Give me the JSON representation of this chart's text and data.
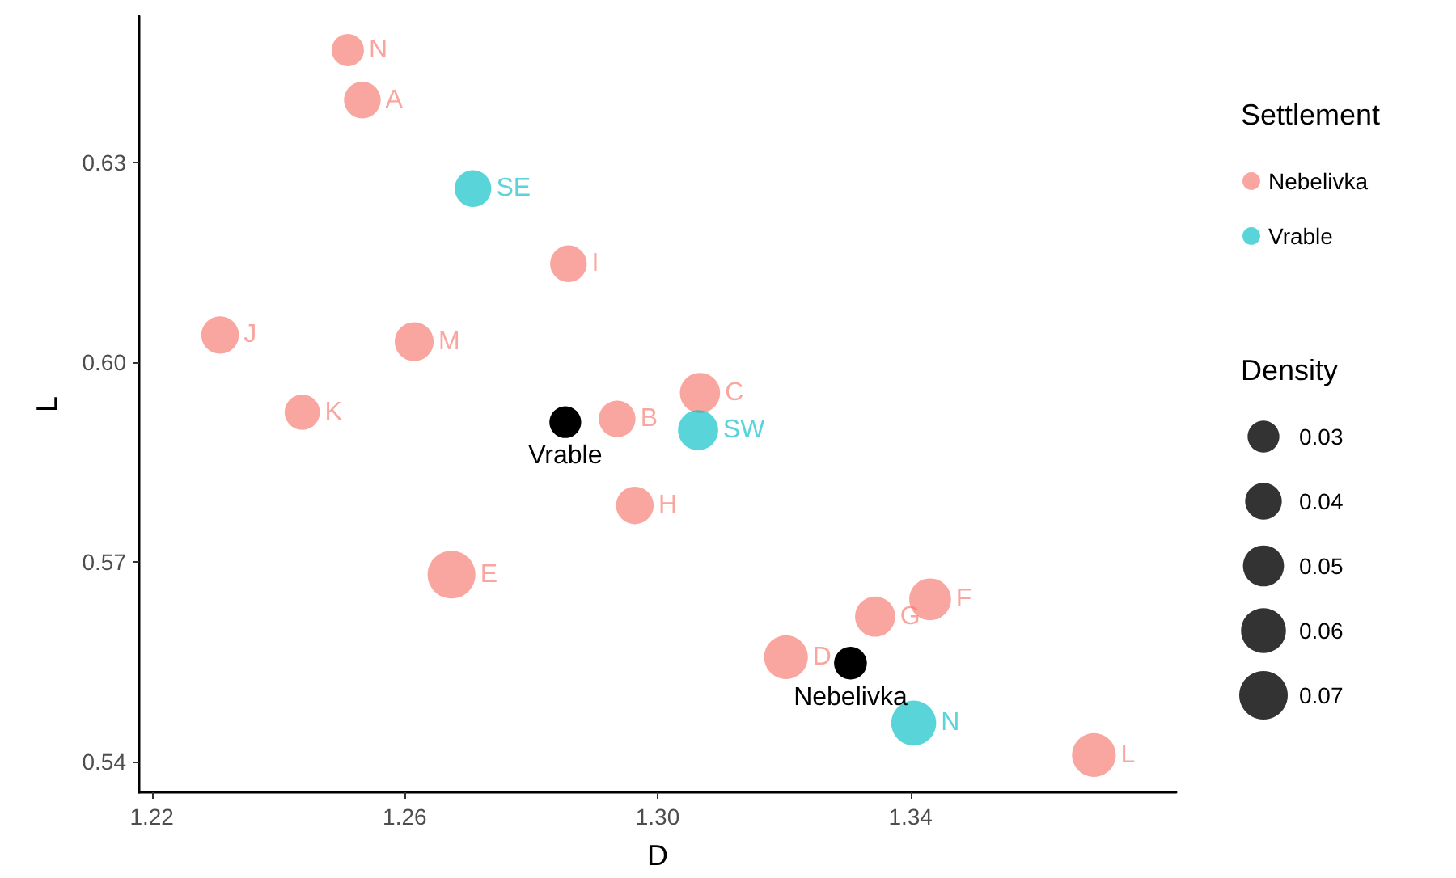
{
  "chart_data": {
    "type": "bubble",
    "xlabel": "D",
    "ylabel": "L",
    "legend_title": "Settlement",
    "legend": "right",
    "annotations": [
      "Density"
    ],
    "xlim": [
      1.218,
      1.382
    ],
    "xticks": [
      1.22,
      1.26,
      {
        "value": 1.3,
        "label": "1.30"
      },
      1.34
    ],
    "ylim": [
      0.5354,
      0.652
    ],
    "yticks": [
      0.54,
      0.57,
      {
        "value": 0.6,
        "label": "0.60"
      },
      0.63
    ],
    "grid": false,
    "marker": "circle",
    "size_legend": [
      0.03,
      0.04,
      0.05,
      0.06,
      0.07
    ],
    "series": [
      {
        "name": "Nebelivka",
        "color": "#f8766d",
        "x": [
          1.251,
          1.2533,
          1.2859,
          1.2308,
          1.2615,
          1.3067,
          1.2438,
          1.2936,
          1.2964,
          1.2674,
          1.3203,
          1.3344,
          1.3431,
          1.369
        ],
        "values": [
          0.6469,
          0.6394,
          0.6148,
          0.6041,
          0.6031,
          0.5954,
          0.5925,
          0.5915,
          0.5785,
          0.5681,
          0.5557,
          0.5618,
          0.5644,
          0.541
        ],
        "sizes": [
          0.031,
          0.04,
          0.04,
          0.042,
          0.045,
          0.048,
          0.037,
          0.04,
          0.042,
          0.068,
          0.057,
          0.048,
          0.052,
          0.057
        ],
        "value_labels": [
          "N",
          "A",
          "I",
          "J",
          "M",
          "C",
          "K",
          "B",
          "H",
          "E",
          "D",
          "G",
          "F",
          "L"
        ]
      },
      {
        "name": "Vrable",
        "color": "#00bfc4",
        "x": [
          1.2708,
          1.3064,
          1.3405
        ],
        "values": [
          0.6261,
          0.5898,
          0.5458
        ],
        "sizes": [
          0.04,
          0.048,
          0.06
        ],
        "value_labels": [
          "SE",
          "SW",
          "N"
        ]
      },
      {
        "color": "#000000",
        "x": [
          1.2854,
          1.3305
        ],
        "values": [
          0.591,
          0.5548
        ],
        "sizes": [
          0.03,
          0.032
        ],
        "value_labels": [
          "Vrable",
          "Nebelivka"
        ]
      }
    ]
  }
}
